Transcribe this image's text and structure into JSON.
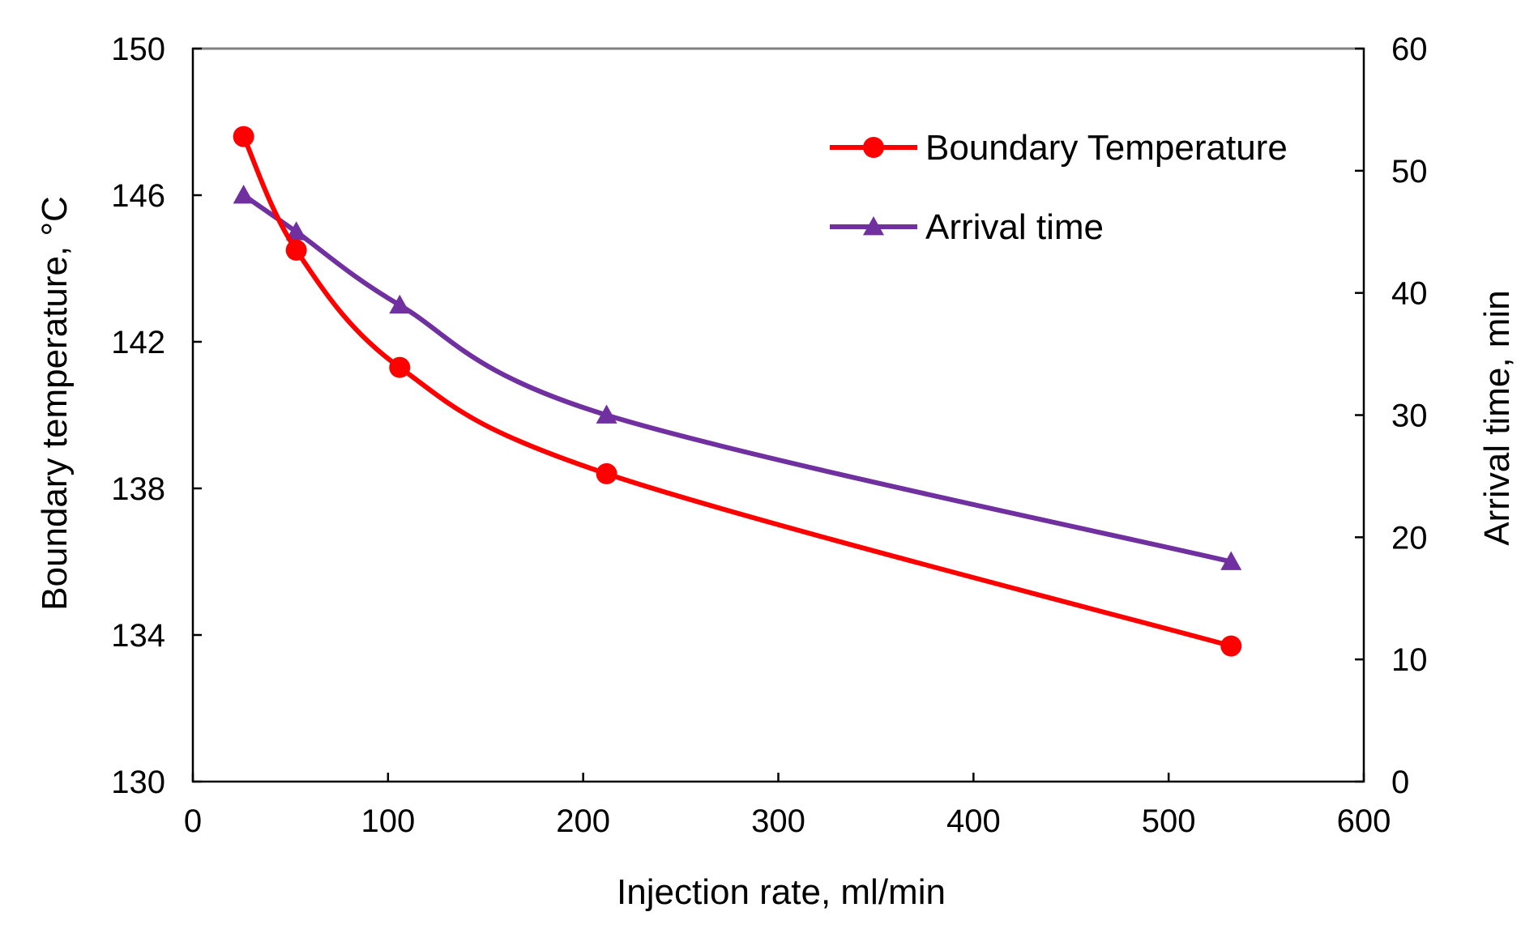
{
  "chart_data": {
    "type": "line",
    "title": "",
    "xlabel": "Injection rate, ml/min",
    "ylabel_left": "Boundary temperature, °C",
    "ylabel_right": "Arrival time, min",
    "xlim": [
      0,
      600
    ],
    "ylim_left": [
      130,
      150
    ],
    "ylim_right": [
      0,
      60
    ],
    "xticks": [
      0,
      100,
      200,
      300,
      400,
      500,
      600
    ],
    "yticks_left": [
      130,
      134,
      138,
      142,
      146,
      150
    ],
    "yticks_right": [
      0,
      10,
      20,
      30,
      40,
      50,
      60
    ],
    "grid": false,
    "legend_position": "top-right",
    "series": [
      {
        "name": "Boundary Temperature",
        "axis": "left",
        "marker": "circle",
        "color": "#FF0000",
        "x": [
          26,
          53,
          106,
          212,
          532
        ],
        "values": [
          147.6,
          144.5,
          141.3,
          138.4,
          133.7
        ]
      },
      {
        "name": "Arrival time",
        "axis": "right",
        "marker": "triangle",
        "color": "#7030A0",
        "x": [
          26,
          53,
          106,
          212,
          532
        ],
        "values": [
          48,
          45,
          39,
          30,
          18
        ]
      }
    ]
  }
}
